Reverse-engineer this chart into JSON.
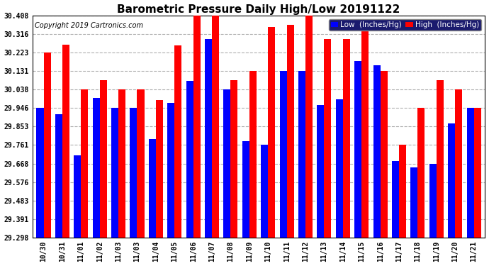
{
  "title": "Barometric Pressure Daily High/Low 20191122",
  "copyright": "Copyright 2019 Cartronics.com",
  "legend_low": "Low  (Inches/Hg)",
  "legend_high": "High  (Inches/Hg)",
  "categories": [
    "10/30",
    "10/31",
    "11/01",
    "11/02",
    "11/03",
    "11/03",
    "11/04",
    "11/05",
    "11/06",
    "11/07",
    "11/08",
    "11/09",
    "11/10",
    "11/11",
    "11/12",
    "11/13",
    "11/14",
    "11/15",
    "11/16",
    "11/17",
    "11/18",
    "11/19",
    "11/20",
    "11/21"
  ],
  "low_values": [
    29.946,
    29.916,
    29.71,
    29.996,
    29.946,
    29.946,
    29.79,
    29.97,
    30.08,
    30.29,
    30.04,
    29.78,
    29.761,
    30.131,
    30.131,
    29.96,
    29.99,
    30.18,
    30.16,
    29.68,
    29.65,
    29.668,
    29.87,
    29.946
  ],
  "high_values": [
    30.223,
    30.261,
    30.038,
    30.085,
    30.038,
    30.038,
    29.985,
    30.26,
    30.408,
    30.408,
    30.085,
    30.131,
    30.35,
    30.36,
    30.408,
    30.29,
    30.29,
    30.34,
    30.131,
    29.761,
    29.946,
    30.085,
    30.038,
    29.946
  ],
  "ylim_min": 29.298,
  "ylim_max": 30.408,
  "yticks": [
    29.298,
    29.391,
    29.483,
    29.576,
    29.668,
    29.761,
    29.853,
    29.946,
    30.038,
    30.131,
    30.223,
    30.316,
    30.408
  ],
  "bar_width": 0.38,
  "low_color": "#0000ff",
  "high_color": "#ff0000",
  "bg_color": "#ffffff",
  "grid_color": "#b0b0b0",
  "title_fontsize": 11,
  "copyright_fontsize": 7,
  "tick_fontsize": 7,
  "legend_fontsize": 7.5
}
